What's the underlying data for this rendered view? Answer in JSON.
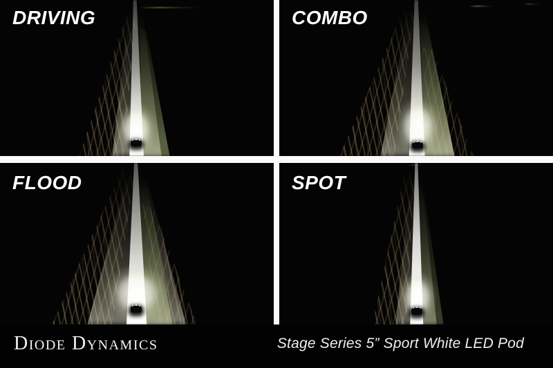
{
  "panels": [
    {
      "id": "driving",
      "label": "DRIVING"
    },
    {
      "id": "combo",
      "label": "COMBO"
    },
    {
      "id": "flood",
      "label": "FLOOD"
    },
    {
      "id": "spot",
      "label": "SPOT"
    }
  ],
  "footer": {
    "brand": "Diode Dynamics",
    "product": "Stage Series 5” Sport White LED Pod"
  },
  "colors": {
    "background": "#000000",
    "divider": "#fafafa",
    "label_text": "#ffffff",
    "footer_text": "#f2f2f0",
    "beam_core": "#ffffff",
    "spill_warm": "#d6ba80",
    "grass_green": "#84925f"
  }
}
